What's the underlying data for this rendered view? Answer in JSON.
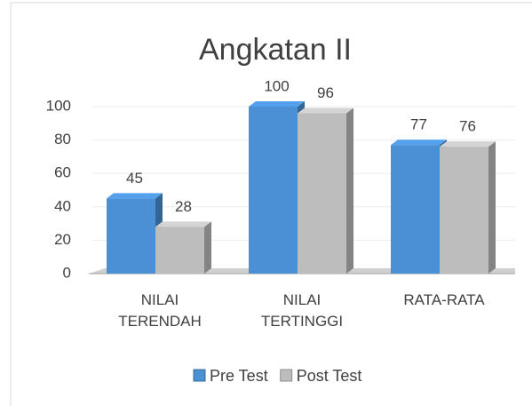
{
  "chart_data": {
    "type": "bar3d",
    "title": "Angkatan II",
    "categories": [
      "NILAI TERENDAH",
      "NILAI TERTINGGI",
      "RATA-RATA"
    ],
    "series": [
      {
        "name": "Pre Test",
        "color": "#4a90d4",
        "values": [
          45,
          100,
          77
        ]
      },
      {
        "name": "Post Test",
        "color": "#bdbdbd",
        "values": [
          28,
          96,
          76
        ]
      }
    ],
    "ylim": [
      0,
      100
    ],
    "yticks": [
      0,
      20,
      40,
      60,
      80,
      100
    ],
    "grid": true,
    "legend": "bottom"
  }
}
